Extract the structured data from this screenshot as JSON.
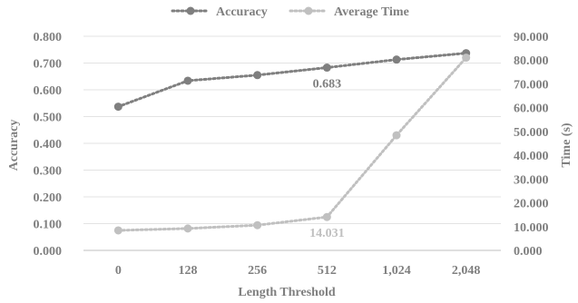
{
  "chart_data": {
    "type": "line",
    "title": "",
    "xlabel": "Length Threshold",
    "ylabel_left": "Accuracy",
    "ylabel_right": "Time (s)",
    "categories": [
      "0",
      "128",
      "256",
      "512",
      "1,024",
      "2,048"
    ],
    "series": [
      {
        "name": "Accuracy",
        "axis": "left",
        "color": "#7f7f7f",
        "values": [
          0.537,
          0.634,
          0.655,
          0.683,
          0.713,
          0.737
        ],
        "labels": [
          {
            "index": 3,
            "text": "0.683"
          }
        ]
      },
      {
        "name": "Average Time",
        "axis": "right",
        "color": "#c0c0c0",
        "values": [
          8.4,
          9.2,
          10.6,
          14.031,
          48.4,
          81.0
        ],
        "labels": [
          {
            "index": 3,
            "text": "14.031"
          }
        ]
      }
    ],
    "ylim_left": [
      0,
      0.8
    ],
    "ylim_right": [
      0,
      90
    ],
    "left_ticks": [
      "0.000",
      "0.100",
      "0.200",
      "0.300",
      "0.400",
      "0.500",
      "0.600",
      "0.700",
      "0.800"
    ],
    "right_ticks": [
      "0.000",
      "10.000",
      "20.000",
      "30.000",
      "40.000",
      "50.000",
      "60.000",
      "70.000",
      "80.000",
      "90.000"
    ],
    "grid": true,
    "legend_position": "top"
  }
}
